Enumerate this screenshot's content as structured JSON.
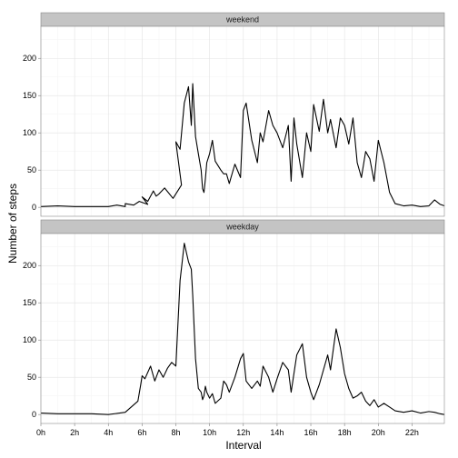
{
  "chart_data": {
    "type": "line",
    "xlabel": "Interval",
    "ylabel": "Number of steps",
    "x_range": [
      0,
      2355
    ],
    "ylim": [
      -12,
      243
    ],
    "x_ticks": [
      {
        "value": 0,
        "label": "0h"
      },
      {
        "value": 200,
        "label": "2h"
      },
      {
        "value": 400,
        "label": "4h"
      },
      {
        "value": 600,
        "label": "6h"
      },
      {
        "value": 800,
        "label": "8h"
      },
      {
        "value": 1000,
        "label": "10h"
      },
      {
        "value": 1200,
        "label": "12h"
      },
      {
        "value": 1400,
        "label": "14h"
      },
      {
        "value": 1600,
        "label": "16h"
      },
      {
        "value": 1800,
        "label": "18h"
      },
      {
        "value": 2000,
        "label": "20h"
      },
      {
        "value": 2200,
        "label": "22h"
      }
    ],
    "y_ticks": [
      {
        "value": 0,
        "label": "0"
      },
      {
        "value": 50,
        "label": "50"
      },
      {
        "value": 100,
        "label": "100"
      },
      {
        "value": 150,
        "label": "150"
      },
      {
        "value": 200,
        "label": "200"
      }
    ],
    "grid": true,
    "panels": [
      {
        "label": "weekend",
        "x": [
          0,
          100,
          200,
          300,
          400,
          430,
          460,
          500,
          530,
          550,
          580,
          600,
          620,
          640,
          650,
          700,
          720,
          750,
          780,
          800,
          815,
          830,
          845,
          855,
          900,
          910,
          920,
          930,
          935,
          940,
          945,
          950,
          1000,
          1010,
          1020,
          1040,
          1050,
          1100,
          1110,
          1130,
          1150,
          1200,
          1210,
          1230,
          1250,
          1300,
          1310,
          1330,
          1345,
          1400,
          1420,
          1440,
          1450,
          1500,
          1510,
          1530,
          1545,
          1600,
          1610,
          1630,
          1645,
          1700,
          1710,
          1730,
          1745,
          1800,
          1815,
          1830,
          1845,
          1900,
          1915,
          1930,
          1945,
          2000,
          2020,
          2040,
          2100,
          2130,
          2200,
          2230,
          2300,
          2320,
          2340,
          2355
        ],
        "y": [
          1,
          2,
          1,
          1,
          1,
          3,
          1,
          5,
          3,
          8,
          4,
          14,
          8,
          22,
          15,
          18,
          26,
          12,
          30,
          88,
          78,
          140,
          162,
          110,
          166,
          95,
          72,
          50,
          25,
          20,
          38,
          60,
          72,
          90,
          62,
          50,
          45,
          45,
          32,
          58,
          40,
          130,
          140,
          90,
          60,
          100,
          88,
          130,
          110,
          100,
          80,
          110,
          35,
          120,
          85,
          40,
          100,
          75,
          138,
          102,
          145,
          100,
          118,
          80,
          120,
          110,
          85,
          120,
          60,
          40,
          75,
          65,
          35,
          90,
          60,
          20,
          5,
          2,
          3,
          1,
          2,
          10,
          4,
          2
        ]
      },
      {
        "label": "weekday",
        "x": [
          0,
          100,
          200,
          300,
          400,
          500,
          545,
          555,
          600,
          610,
          630,
          645,
          700,
          715,
          730,
          745,
          800,
          815,
          830,
          845,
          855,
          900,
          910,
          920,
          930,
          935,
          940,
          945,
          950,
          1000,
          1010,
          1020,
          1040,
          1050,
          1100,
          1110,
          1130,
          1150,
          1200,
          1210,
          1230,
          1250,
          1300,
          1310,
          1330,
          1345,
          1400,
          1420,
          1440,
          1450,
          1500,
          1510,
          1530,
          1545,
          1600,
          1610,
          1630,
          1645,
          1700,
          1710,
          1730,
          1745,
          1800,
          1815,
          1830,
          1845,
          1900,
          1915,
          1930,
          1945,
          2000,
          2020,
          2040,
          2100,
          2130,
          2200,
          2230,
          2300,
          2320,
          2340,
          2355
        ],
        "y": [
          2,
          1,
          1,
          1,
          0,
          3,
          18,
          40,
          52,
          48,
          65,
          45,
          60,
          50,
          62,
          70,
          65,
          180,
          230,
          205,
          195,
          160,
          75,
          35,
          30,
          20,
          25,
          38,
          30,
          22,
          28,
          15,
          22,
          45,
          40,
          30,
          50,
          75,
          82,
          45,
          35,
          45,
          38,
          65,
          50,
          30,
          48,
          70,
          60,
          30,
          55,
          80,
          95,
          50,
          30,
          20,
          40,
          60,
          80,
          60,
          115,
          90,
          55,
          35,
          22,
          25,
          30,
          18,
          12,
          20,
          10,
          15,
          10,
          5,
          3,
          5,
          2,
          4,
          3,
          1,
          0
        ]
      }
    ]
  }
}
